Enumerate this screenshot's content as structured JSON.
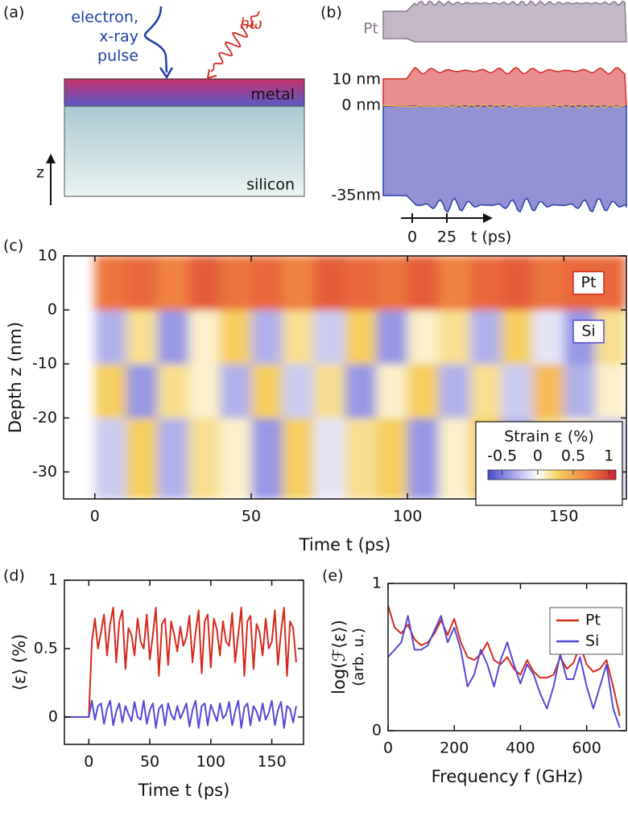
{
  "panel_labels": [
    "(a)",
    "(b)",
    "(c)",
    "(d)",
    "(e)"
  ],
  "diagram_a": {
    "pulse_label": [
      "electron,",
      "x-ray",
      "pulse"
    ],
    "photon_label": "hω",
    "layers": [
      "metal",
      "silicon"
    ],
    "axis_label": "z"
  },
  "diagram_b": {
    "layer_label": "Pt",
    "depth_labels": [
      "10 nm",
      "0 nm",
      "-35nm"
    ],
    "time_ticks": [
      "0",
      "25"
    ],
    "time_label": "t (ps)"
  },
  "chart_data": [
    {
      "type": "heatmap",
      "xlabel": "Time t (ps)",
      "ylabel": "Depth z (nm)",
      "x_edges": [
        0,
        10,
        20,
        30,
        40,
        50,
        60,
        70,
        80,
        90,
        100,
        110,
        120,
        130,
        140,
        150,
        160,
        170
      ],
      "y_edges": [
        -35,
        -20,
        -10,
        0,
        10
      ],
      "z": [
        [
          -0.2,
          0.3,
          -0.3,
          0.2,
          0.1,
          -0.4,
          0.3,
          -0.1,
          0.2,
          0.3,
          -0.4,
          0.1,
          0.3,
          -0.3,
          0.2,
          0.1,
          -0.2
        ],
        [
          0.3,
          -0.4,
          0.2,
          0.1,
          -0.3,
          0.3,
          -0.2,
          0.2,
          -0.4,
          0.1,
          0.3,
          -0.3,
          0.2,
          -0.2,
          0.4,
          -0.3,
          0.1
        ],
        [
          -0.3,
          0.2,
          -0.4,
          0.1,
          0.3,
          -0.3,
          0.2,
          -0.2,
          0.3,
          -0.4,
          0.1,
          0.2,
          -0.3,
          0.3,
          -0.1,
          -0.4,
          0.2
        ],
        [
          0.75,
          0.8,
          0.7,
          0.85,
          0.75,
          0.8,
          0.7,
          0.85,
          0.8,
          0.75,
          0.85,
          0.7,
          0.8,
          0.85,
          0.75,
          0.8,
          0.8
        ]
      ],
      "xlim": [
        -10,
        170
      ],
      "ylim": [
        -35,
        10
      ],
      "xticks": [
        0,
        50,
        100,
        150
      ],
      "yticks": [
        10,
        0,
        -10,
        -20,
        -30
      ],
      "annotations": [
        "Pt",
        "Si"
      ],
      "colorbar": {
        "label": "Strain ε (%)",
        "clim": [
          -0.7,
          1.1
        ],
        "ticks": [
          -0.5,
          0,
          0.5,
          1
        ]
      }
    },
    {
      "type": "line",
      "xlabel": "Time t (ps)",
      "ylabel": "⟨ε⟩ (%)",
      "x": [
        -20,
        -10,
        0,
        2.5,
        5,
        7.5,
        10,
        12.5,
        15,
        17.5,
        20,
        22.5,
        25,
        27.5,
        30,
        32.5,
        35,
        37.5,
        40,
        42.5,
        45,
        47.5,
        50,
        52.5,
        55,
        57.5,
        60,
        62.5,
        65,
        67.5,
        70,
        72.5,
        75,
        77.5,
        80,
        82.5,
        85,
        87.5,
        90,
        92.5,
        95,
        97.5,
        100,
        102.5,
        105,
        107.5,
        110,
        112.5,
        115,
        117.5,
        120,
        122.5,
        125,
        127.5,
        130,
        132.5,
        135,
        137.5,
        140,
        142.5,
        145,
        147.5,
        150,
        152.5,
        155,
        157.5,
        160,
        162.5,
        165,
        167.5,
        170
      ],
      "series": [
        {
          "color": "#d62a1e",
          "values": [
            0,
            0,
            0,
            0.55,
            0.72,
            0.5,
            0.62,
            0.75,
            0.45,
            0.68,
            0.8,
            0.4,
            0.7,
            0.78,
            0.35,
            0.65,
            0.6,
            0.45,
            0.72,
            0.55,
            0.5,
            0.75,
            0.42,
            0.6,
            0.8,
            0.3,
            0.68,
            0.72,
            0.38,
            0.7,
            0.6,
            0.48,
            0.66,
            0.52,
            0.58,
            0.74,
            0.4,
            0.62,
            0.78,
            0.32,
            0.7,
            0.75,
            0.36,
            0.72,
            0.64,
            0.45,
            0.7,
            0.55,
            0.52,
            0.76,
            0.4,
            0.6,
            0.8,
            0.3,
            0.7,
            0.74,
            0.35,
            0.68,
            0.62,
            0.45,
            0.72,
            0.5,
            0.55,
            0.78,
            0.38,
            0.62,
            0.8,
            0.3,
            0.7,
            0.65,
            0.4
          ]
        },
        {
          "color": "#5548d8",
          "values": [
            0,
            0,
            0,
            0.12,
            -0.02,
            0.08,
            0.1,
            -0.05,
            0.06,
            0.12,
            -0.06,
            0.04,
            0.1,
            -0.04,
            0.08,
            0.02,
            -0.03,
            0.11,
            0.0,
            -0.02,
            0.12,
            -0.05,
            0.05,
            0.1,
            -0.08,
            0.06,
            0.09,
            -0.06,
            0.1,
            0.02,
            -0.02,
            0.08,
            -0.01,
            0.04,
            0.1,
            -0.07,
            0.05,
            0.12,
            -0.08,
            0.08,
            0.1,
            -0.06,
            0.09,
            0.03,
            -0.03,
            0.1,
            -0.01,
            0.02,
            0.11,
            -0.06,
            0.04,
            0.12,
            -0.08,
            0.07,
            0.1,
            -0.06,
            0.08,
            0.04,
            -0.03,
            0.1,
            -0.02,
            0.03,
            0.12,
            -0.06,
            0.05,
            0.11,
            -0.08,
            0.08,
            0.06,
            -0.04,
            0.08
          ]
        }
      ],
      "xlim": [
        -20,
        176
      ],
      "ylim": [
        -0.2,
        1
      ],
      "xticks": [
        0,
        50,
        100,
        150
      ],
      "yticks": [
        0,
        0.5,
        1
      ]
    },
    {
      "type": "line",
      "xlabel": "Frequency f (GHz)",
      "ylabel": [
        "log(ℱ⟨ε⟩)",
        "(arb. u.)"
      ],
      "x": [
        0,
        20,
        40,
        60,
        80,
        100,
        120,
        140,
        160,
        180,
        200,
        220,
        240,
        260,
        280,
        300,
        320,
        340,
        360,
        380,
        400,
        420,
        440,
        460,
        480,
        500,
        520,
        540,
        560,
        580,
        600,
        620,
        640,
        660,
        680,
        700
      ],
      "series": [
        {
          "name": "Pt",
          "color": "#d62a1e",
          "values": [
            0.85,
            0.7,
            0.66,
            0.72,
            0.62,
            0.58,
            0.6,
            0.66,
            0.75,
            0.65,
            0.76,
            0.6,
            0.5,
            0.48,
            0.52,
            0.6,
            0.48,
            0.45,
            0.5,
            0.42,
            0.38,
            0.48,
            0.4,
            0.36,
            0.36,
            0.38,
            0.5,
            0.42,
            0.46,
            0.58,
            0.45,
            0.4,
            0.42,
            0.48,
            0.3,
            0.1
          ]
        },
        {
          "name": "Si",
          "color": "#5548d8",
          "values": [
            0.5,
            0.55,
            0.6,
            0.78,
            0.55,
            0.55,
            0.58,
            0.68,
            0.78,
            0.6,
            0.7,
            0.55,
            0.3,
            0.38,
            0.55,
            0.45,
            0.3,
            0.48,
            0.6,
            0.45,
            0.32,
            0.45,
            0.38,
            0.25,
            0.15,
            0.3,
            0.52,
            0.35,
            0.35,
            0.5,
            0.3,
            0.15,
            0.3,
            0.45,
            0.15,
            0.02
          ]
        }
      ],
      "xlim": [
        0,
        720
      ],
      "ylim": [
        0,
        1
      ],
      "xticks": [
        0,
        200,
        400,
        600
      ],
      "yticks": [
        0,
        1
      ],
      "legend": "upper right"
    }
  ]
}
